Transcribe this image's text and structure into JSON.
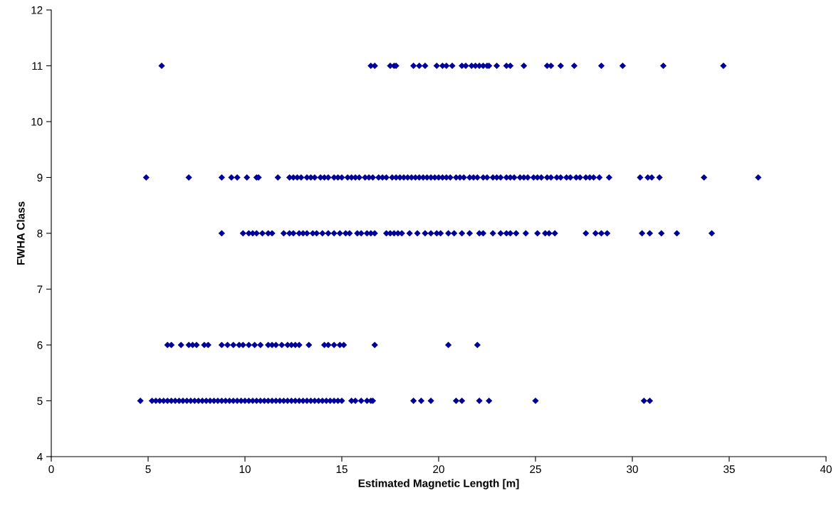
{
  "chart_data": {
    "type": "scatter",
    "xlabel": "Estimated Magnetic Length [m]",
    "ylabel": "FWHA Class",
    "xlim": [
      0,
      40
    ],
    "xticks": [
      0,
      5,
      10,
      15,
      20,
      25,
      30,
      35,
      40
    ],
    "ylim": [
      4,
      12
    ],
    "yticks": [
      4,
      5,
      6,
      7,
      8,
      9,
      10,
      11,
      12
    ],
    "grid": false,
    "legend": false,
    "marker": "diamond",
    "series": [
      {
        "color": "#000099",
        "x": [
          5.7,
          16.5,
          16.7,
          17.5,
          17.7,
          17.8,
          18.7,
          19.0,
          19.3,
          19.9,
          20.2,
          20.4,
          20.7,
          21.2,
          21.4,
          21.7,
          21.9,
          22.1,
          22.3,
          22.5,
          22.6,
          23.0,
          23.5,
          23.7,
          24.4,
          25.6,
          25.8,
          26.3,
          27.0,
          28.4,
          29.5,
          31.6,
          34.7
        ],
        "values": [
          11,
          11,
          11,
          11,
          11,
          11,
          11,
          11,
          11,
          11,
          11,
          11,
          11,
          11,
          11,
          11,
          11,
          11,
          11,
          11,
          11,
          11,
          11,
          11,
          11,
          11,
          11,
          11,
          11,
          11,
          11,
          11,
          11
        ]
      },
      {
        "color": "#000099",
        "x": [
          4.9,
          7.1,
          8.8,
          9.3,
          9.6,
          10.1,
          10.6,
          10.7,
          11.7,
          12.3,
          12.5,
          12.7,
          12.9,
          13.2,
          13.4,
          13.6,
          13.9,
          14.1,
          14.3,
          14.6,
          14.8,
          15.0,
          15.3,
          15.5,
          15.7,
          15.9,
          16.2,
          16.4,
          16.6,
          16.9,
          17.1,
          17.3,
          17.6,
          17.8,
          18.0,
          18.2,
          18.4,
          18.6,
          18.8,
          19.0,
          19.2,
          19.4,
          19.6,
          19.8,
          20.0,
          20.2,
          20.4,
          20.6,
          20.9,
          21.1,
          21.3,
          21.6,
          21.8,
          22.0,
          22.3,
          22.5,
          22.8,
          23.0,
          23.2,
          23.5,
          23.7,
          23.9,
          24.2,
          24.4,
          24.6,
          24.9,
          25.1,
          25.3,
          25.6,
          25.8,
          26.1,
          26.3,
          26.6,
          26.8,
          27.1,
          27.3,
          27.6,
          27.8,
          28.0,
          28.3,
          28.8,
          30.4,
          30.8,
          31.0,
          31.4,
          33.7,
          36.5
        ],
        "values": [
          9,
          9,
          9,
          9,
          9,
          9,
          9,
          9,
          9,
          9,
          9,
          9,
          9,
          9,
          9,
          9,
          9,
          9,
          9,
          9,
          9,
          9,
          9,
          9,
          9,
          9,
          9,
          9,
          9,
          9,
          9,
          9,
          9,
          9,
          9,
          9,
          9,
          9,
          9,
          9,
          9,
          9,
          9,
          9,
          9,
          9,
          9,
          9,
          9,
          9,
          9,
          9,
          9,
          9,
          9,
          9,
          9,
          9,
          9,
          9,
          9,
          9,
          9,
          9,
          9,
          9,
          9,
          9,
          9,
          9,
          9,
          9,
          9,
          9,
          9,
          9,
          9,
          9,
          9,
          9,
          9,
          9,
          9,
          9,
          9,
          9,
          9
        ]
      },
      {
        "color": "#000099",
        "x": [
          8.8,
          9.9,
          10.2,
          10.4,
          10.6,
          10.9,
          11.2,
          11.4,
          12.0,
          12.3,
          12.5,
          12.8,
          13.0,
          13.2,
          13.5,
          13.7,
          14.0,
          14.3,
          14.6,
          14.9,
          15.2,
          15.4,
          15.8,
          16.0,
          16.3,
          16.5,
          16.7,
          17.3,
          17.5,
          17.7,
          17.9,
          18.1,
          18.5,
          18.9,
          19.3,
          19.6,
          19.9,
          20.1,
          20.5,
          20.8,
          21.2,
          21.6,
          22.1,
          22.3,
          22.8,
          23.2,
          23.5,
          23.7,
          24.0,
          24.5,
          25.1,
          25.5,
          25.7,
          26.0,
          27.6,
          28.1,
          28.4,
          28.7,
          30.5,
          30.9,
          31.5,
          32.3,
          34.1
        ],
        "values": [
          8,
          8,
          8,
          8,
          8,
          8,
          8,
          8,
          8,
          8,
          8,
          8,
          8,
          8,
          8,
          8,
          8,
          8,
          8,
          8,
          8,
          8,
          8,
          8,
          8,
          8,
          8,
          8,
          8,
          8,
          8,
          8,
          8,
          8,
          8,
          8,
          8,
          8,
          8,
          8,
          8,
          8,
          8,
          8,
          8,
          8,
          8,
          8,
          8,
          8,
          8,
          8,
          8,
          8,
          8,
          8,
          8,
          8,
          8,
          8,
          8,
          8,
          8
        ]
      },
      {
        "color": "#000099",
        "x": [
          6.0,
          6.2,
          6.7,
          7.1,
          7.3,
          7.5,
          7.9,
          8.1,
          8.8,
          9.1,
          9.4,
          9.7,
          9.9,
          10.2,
          10.5,
          10.8,
          11.2,
          11.4,
          11.6,
          11.9,
          12.2,
          12.4,
          12.6,
          12.8,
          13.3,
          14.1,
          14.3,
          14.6,
          14.9,
          15.1,
          16.7,
          20.5,
          22.0
        ],
        "values": [
          6,
          6,
          6,
          6,
          6,
          6,
          6,
          6,
          6,
          6,
          6,
          6,
          6,
          6,
          6,
          6,
          6,
          6,
          6,
          6,
          6,
          6,
          6,
          6,
          6,
          6,
          6,
          6,
          6,
          6,
          6,
          6,
          6
        ]
      },
      {
        "color": "#000099",
        "x": [
          4.6,
          5.2,
          5.4,
          5.6,
          5.8,
          6.0,
          6.2,
          6.4,
          6.6,
          6.8,
          7.0,
          7.2,
          7.4,
          7.6,
          7.8,
          8.0,
          8.2,
          8.4,
          8.6,
          8.8,
          9.0,
          9.2,
          9.4,
          9.6,
          9.8,
          10.0,
          10.2,
          10.4,
          10.6,
          10.8,
          11.0,
          11.2,
          11.4,
          11.6,
          11.8,
          12.0,
          12.2,
          12.4,
          12.6,
          12.8,
          13.0,
          13.2,
          13.4,
          13.6,
          13.8,
          14.0,
          14.2,
          14.4,
          14.6,
          14.8,
          15.0,
          15.5,
          15.7,
          16.0,
          16.3,
          16.5,
          16.6,
          18.7,
          19.1,
          19.6,
          20.9,
          21.2,
          22.1,
          22.6,
          25.0,
          30.6,
          30.9
        ],
        "values": [
          5,
          5,
          5,
          5,
          5,
          5,
          5,
          5,
          5,
          5,
          5,
          5,
          5,
          5,
          5,
          5,
          5,
          5,
          5,
          5,
          5,
          5,
          5,
          5,
          5,
          5,
          5,
          5,
          5,
          5,
          5,
          5,
          5,
          5,
          5,
          5,
          5,
          5,
          5,
          5,
          5,
          5,
          5,
          5,
          5,
          5,
          5,
          5,
          5,
          5,
          5,
          5,
          5,
          5,
          5,
          5,
          5,
          5,
          5,
          5,
          5,
          5,
          5,
          5,
          5,
          5,
          5
        ]
      }
    ]
  }
}
